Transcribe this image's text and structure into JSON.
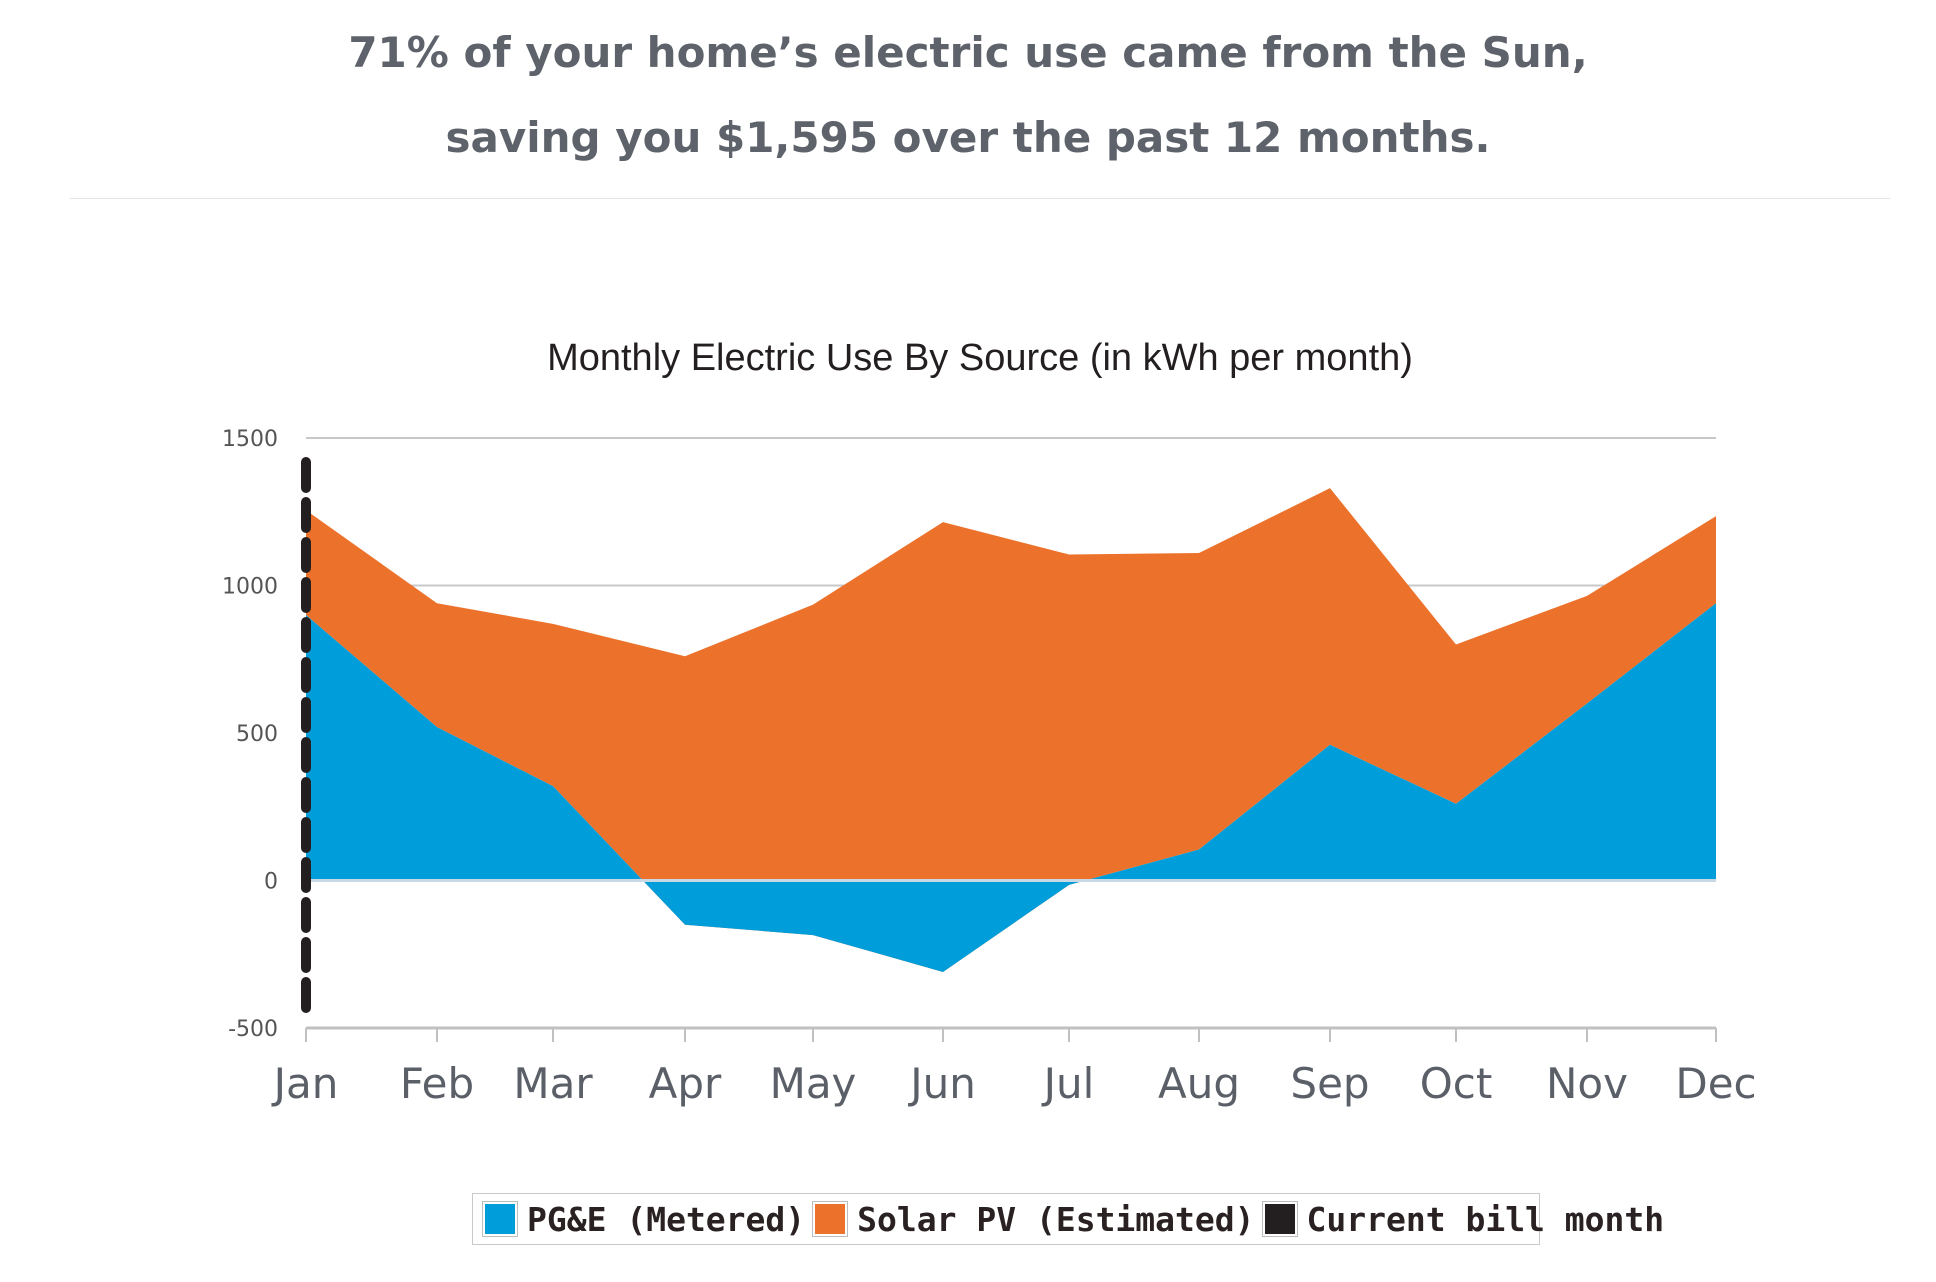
{
  "headline": {
    "line1": "71% of your home’s electric use came from the Sun,",
    "line2": "saving you $1,595 over the past 12 months."
  },
  "chart_data": {
    "type": "area",
    "title": "Monthly Electric Use By Source (in kWh per month)",
    "categories": [
      "Jan",
      "Feb",
      "Mar",
      "Apr",
      "May",
      "Jun",
      "Jul",
      "Aug",
      "Sep",
      "Oct",
      "Nov",
      "Dec"
    ],
    "ylim": [
      -500,
      1500
    ],
    "yticks": [
      -500,
      0,
      500,
      1000,
      1500
    ],
    "grid": true,
    "legend_position": "bottom-center",
    "series": [
      {
        "name": "PG&E (Metered)",
        "color": "#009ddb",
        "values": [
          900,
          520,
          320,
          -150,
          -185,
          -310,
          -15,
          105,
          460,
          260,
          600,
          940
        ]
      },
      {
        "name": "Solar PV (Estimated)",
        "color": "#ec722c",
        "values": [
          355,
          420,
          550,
          910,
          1120,
          1525,
          1120,
          1005,
          870,
          540,
          365,
          295
        ]
      },
      {
        "name": "Current bill month",
        "color": "#231f20",
        "marker": "dashed vertical line",
        "category": "Jan"
      }
    ]
  }
}
